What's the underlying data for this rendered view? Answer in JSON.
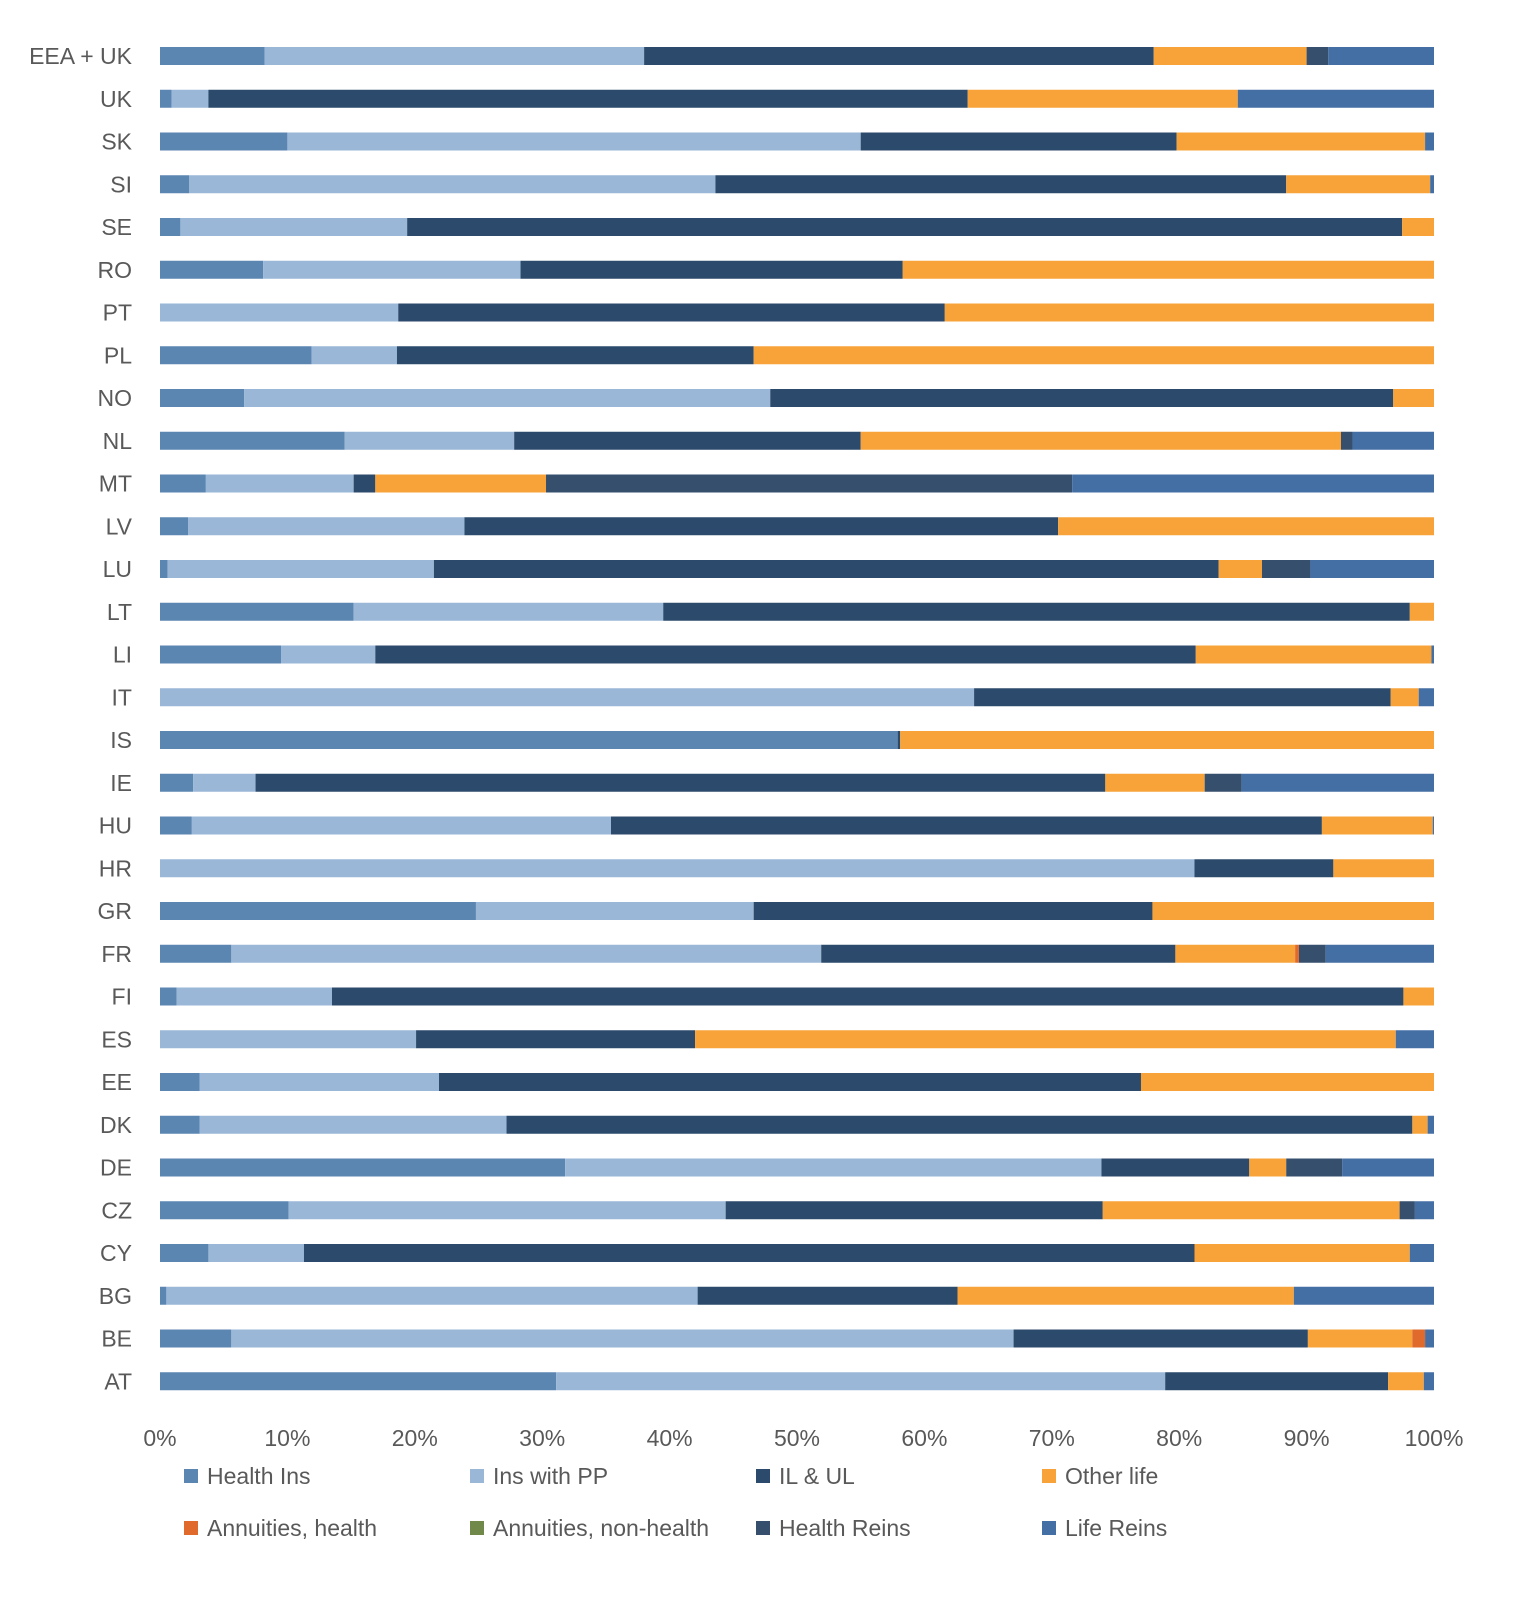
{
  "chart_data": {
    "type": "bar",
    "orientation": "horizontal",
    "stacked": "percent",
    "categories": [
      "EEA + UK",
      "UK",
      "SK",
      "SI",
      "SE",
      "RO",
      "PT",
      "PL",
      "NO",
      "NL",
      "MT",
      "LV",
      "LU",
      "LT",
      "LI",
      "IT",
      "IS",
      "IE",
      "HU",
      "HR",
      "GR",
      "FR",
      "FI",
      "ES",
      "EE",
      "DK",
      "DE",
      "CZ",
      "CY",
      "BG",
      "BE",
      "AT"
    ],
    "xlim": [
      0,
      100
    ],
    "x_ticks": [
      "0%",
      "10%",
      "20%",
      "30%",
      "40%",
      "50%",
      "60%",
      "70%",
      "80%",
      "90%",
      "100%"
    ],
    "grid": false,
    "legend_position": "bottom",
    "series": [
      {
        "name": "Health Ins",
        "color": "#5b86b2",
        "values": [
          8.2,
          0.9,
          10.0,
          2.3,
          1.6,
          8.1,
          0,
          11.9,
          6.6,
          14.5,
          3.6,
          2.2,
          0.6,
          15.2,
          9.5,
          0,
          57.9,
          2.6,
          2.5,
          0,
          24.8,
          5.6,
          1.3,
          0,
          3.1,
          3.1,
          31.8,
          10.1,
          3.8,
          0.5,
          5.6,
          31.1
        ]
      },
      {
        "name": "Ins with PP",
        "color": "#9ab7d7",
        "values": [
          29.8,
          2.9,
          45.0,
          41.3,
          17.8,
          20.2,
          18.7,
          6.7,
          41.3,
          13.3,
          11.6,
          21.7,
          20.9,
          24.3,
          7.4,
          63.9,
          0,
          4.9,
          32.9,
          81.2,
          21.8,
          46.3,
          12.2,
          20.1,
          18.8,
          24.1,
          42.1,
          34.3,
          7.5,
          41.7,
          61.4,
          47.8
        ]
      },
      {
        "name": "IL & UL",
        "color": "#2c4a6b",
        "values": [
          40.0,
          59.6,
          24.8,
          44.8,
          78.1,
          30.0,
          42.9,
          28.0,
          48.9,
          27.2,
          1.7,
          46.6,
          61.6,
          58.6,
          64.4,
          32.7,
          0.2,
          66.7,
          55.8,
          10.9,
          31.3,
          27.8,
          84.1,
          21.9,
          55.1,
          71.1,
          11.6,
          29.6,
          69.9,
          20.4,
          23.1,
          17.5
        ]
      },
      {
        "name": "Other life",
        "color": "#f7a33a",
        "values": [
          12.0,
          21.2,
          19.5,
          11.3,
          2.5,
          41.7,
          38.4,
          53.4,
          3.2,
          37.7,
          13.4,
          29.5,
          3.4,
          1.9,
          18.5,
          2.2,
          41.9,
          7.8,
          8.7,
          7.9,
          22.1,
          9.4,
          2.4,
          55.0,
          23.0,
          1.2,
          2.9,
          23.3,
          16.9,
          26.4,
          8.2,
          2.8
        ]
      },
      {
        "name": "Annuities, health",
        "color": "#e06a2c",
        "values": [
          0,
          0,
          0,
          0,
          0,
          0,
          0,
          0,
          0,
          0,
          0,
          0,
          0,
          0,
          0,
          0,
          0,
          0,
          0,
          0,
          0,
          0.3,
          0,
          0,
          0,
          0,
          0,
          0,
          0,
          0,
          1.0,
          0
        ]
      },
      {
        "name": "Annuities, non-health",
        "color": "#70894a",
        "values": [
          0,
          0,
          0,
          0,
          0,
          0,
          0,
          0,
          0,
          0,
          0,
          0,
          0,
          0,
          0,
          0,
          0,
          0,
          0,
          0,
          0,
          0,
          0,
          0,
          0,
          0,
          0,
          0,
          0,
          0,
          0,
          0
        ]
      },
      {
        "name": "Health Reins",
        "color": "#354f6c",
        "values": [
          1.7,
          0,
          0,
          0,
          0,
          0,
          0,
          0,
          0,
          0.9,
          41.3,
          0,
          3.8,
          0,
          0,
          0,
          0,
          2.9,
          0,
          0,
          0,
          2.1,
          0,
          0,
          0,
          0,
          4.4,
          1.2,
          0,
          0,
          0,
          0
        ]
      },
      {
        "name": "Life Reins",
        "color": "#436fa5",
        "values": [
          8.3,
          15.4,
          0.7,
          0.3,
          0,
          0,
          0,
          0,
          0,
          6.4,
          28.4,
          0,
          9.7,
          0,
          0.2,
          1.2,
          0,
          15.1,
          0.1,
          0,
          0,
          8.5,
          0,
          3.0,
          0,
          0.5,
          7.2,
          1.5,
          1.9,
          11.0,
          0.7,
          0.8
        ]
      }
    ]
  }
}
